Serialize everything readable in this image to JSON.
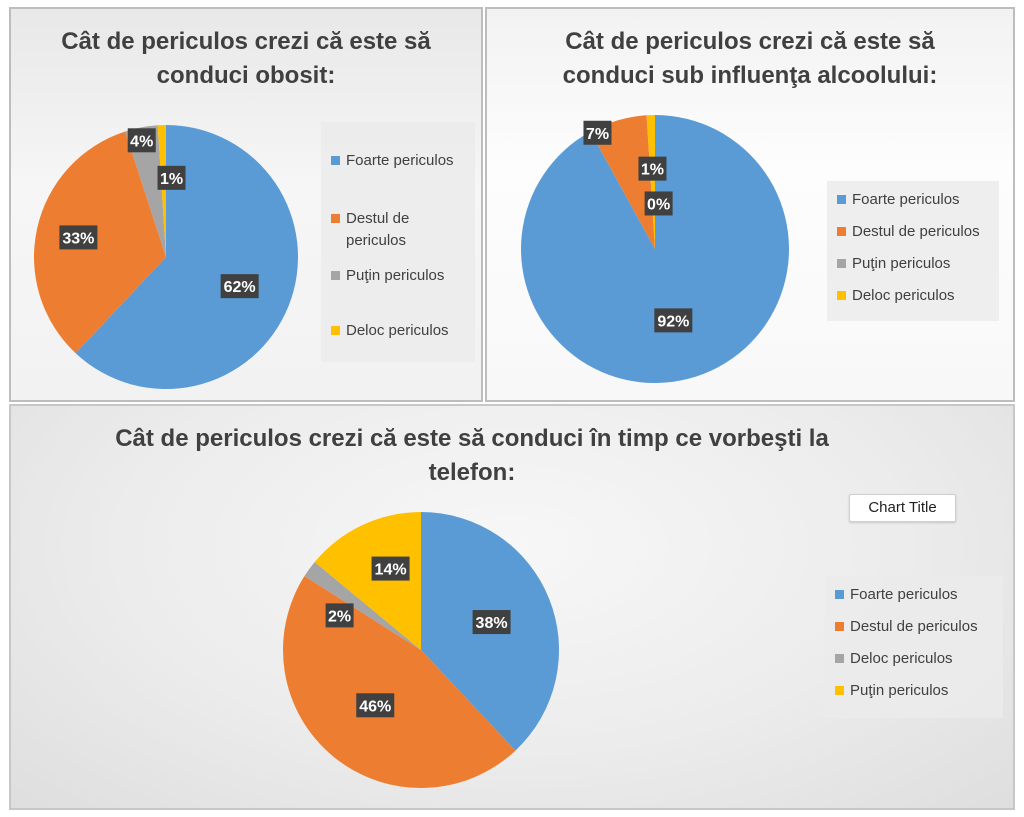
{
  "colors": {
    "blue": "#5b9bd5",
    "orange": "#ed7d31",
    "gray": "#a5a5a5",
    "yellow": "#ffc000"
  },
  "chart_data": [
    {
      "type": "pie",
      "title_lines": [
        "Cât de periculos crezi că este să",
        "conduci obosit:"
      ],
      "slices": [
        {
          "name": "Foarte periculos",
          "value": 62,
          "label": "62%",
          "color": "#5b9bd5"
        },
        {
          "name": "Destul de periculos",
          "value": 33,
          "label": "33%",
          "color": "#ed7d31"
        },
        {
          "name": "Puţin periculos",
          "value": 4,
          "label": "4%",
          "color": "#a5a5a5"
        },
        {
          "name": "Deloc periculos",
          "value": 1,
          "label": "1%",
          "color": "#ffc000"
        }
      ],
      "legend": [
        {
          "lines": [
            "Foarte periculos"
          ],
          "color": "#5b9bd5"
        },
        {
          "lines": [
            "Destul de",
            "periculos"
          ],
          "color": "#ed7d31"
        },
        {
          "lines": [
            "Puţin periculos"
          ],
          "color": "#a5a5a5"
        },
        {
          "lines": [
            "Deloc periculos"
          ],
          "color": "#ffc000"
        }
      ],
      "legend_position": "right"
    },
    {
      "type": "pie",
      "title_lines": [
        "Cât de periculos crezi că este să",
        "conduci sub influenţa alcoolului:"
      ],
      "slices": [
        {
          "name": "Foarte periculos",
          "value": 92,
          "label": "92%",
          "color": "#5b9bd5"
        },
        {
          "name": "Destul de periculos",
          "value": 7,
          "label": "7%",
          "color": "#ed7d31"
        },
        {
          "name": "Puţin periculos",
          "value": 0,
          "label": "0%",
          "color": "#a5a5a5"
        },
        {
          "name": "Deloc periculos",
          "value": 1,
          "label": "1%",
          "color": "#ffc000"
        }
      ],
      "legend": [
        {
          "lines": [
            "Foarte periculos"
          ],
          "color": "#5b9bd5"
        },
        {
          "lines": [
            "Destul de periculos"
          ],
          "color": "#ed7d31"
        },
        {
          "lines": [
            "Puţin periculos"
          ],
          "color": "#a5a5a5"
        },
        {
          "lines": [
            "Deloc periculos"
          ],
          "color": "#ffc000"
        }
      ],
      "legend_position": "right"
    },
    {
      "type": "pie",
      "title_lines": [
        "Cât de periculos crezi că este să conduci în timp ce vorbeşti la",
        "telefon:"
      ],
      "slices": [
        {
          "name": "Foarte periculos",
          "value": 38,
          "label": "38%",
          "color": "#5b9bd5"
        },
        {
          "name": "Destul de periculos",
          "value": 46,
          "label": "46%",
          "color": "#ed7d31"
        },
        {
          "name": "Deloc periculos",
          "value": 2,
          "label": "2%",
          "color": "#a5a5a5"
        },
        {
          "name": "Puţin periculos",
          "value": 14,
          "label": "14%",
          "color": "#ffc000"
        }
      ],
      "legend": [
        {
          "lines": [
            "Foarte periculos"
          ],
          "color": "#5b9bd5"
        },
        {
          "lines": [
            "Destul de periculos"
          ],
          "color": "#ed7d31"
        },
        {
          "lines": [
            "Deloc periculos"
          ],
          "color": "#a5a5a5"
        },
        {
          "lines": [
            "Puţin periculos"
          ],
          "color": "#ffc000"
        }
      ],
      "legend_position": "right",
      "placeholder_title": "Chart Title"
    }
  ]
}
